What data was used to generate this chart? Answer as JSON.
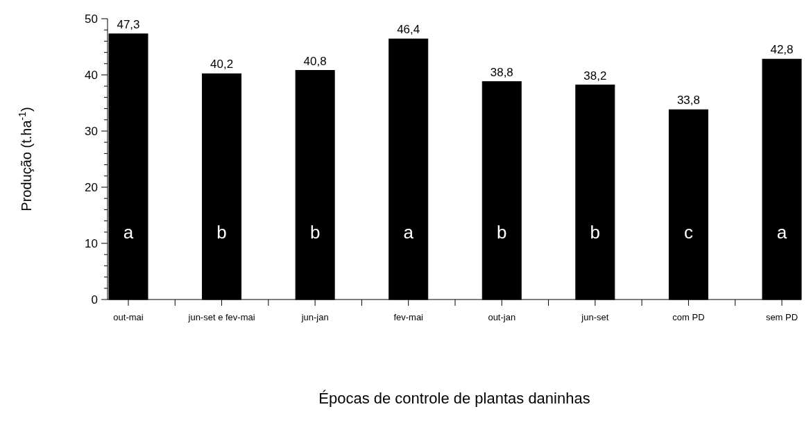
{
  "chart_data": {
    "type": "bar",
    "xlabel": "Épocas de controle de plantas daninhas",
    "ylabel": "Produção (t.ha$^{-1}$)",
    "categories": [
      "out-mai",
      "jun-set e fev-mai",
      "jun-jan",
      "fev-mai",
      "out-jan",
      "jun-set",
      "com PD",
      "sem PD"
    ],
    "values": [
      47.3,
      40.2,
      40.8,
      46.4,
      38.8,
      38.2,
      33.8,
      42.8
    ],
    "value_labels": [
      "47,3",
      "40,2",
      "40,8",
      "46,4",
      "38,8",
      "38,2",
      "33,8",
      "42,8"
    ],
    "color": "#000000",
    "ylim": [
      0,
      50
    ],
    "yticks": [
      0,
      {
        "value": 2,
        "label": null
      },
      {
        "value": 4,
        "label": null
      },
      {
        "value": 6,
        "label": null
      },
      {
        "value": 8,
        "label": null
      },
      10,
      {
        "value": 12,
        "label": null
      },
      {
        "value": 14,
        "label": null
      },
      {
        "value": 16,
        "label": null
      },
      {
        "value": 18,
        "label": null
      },
      20,
      {
        "value": 22,
        "label": null
      },
      {
        "value": 24,
        "label": null
      },
      {
        "value": 26,
        "label": null
      },
      {
        "value": 28,
        "label": null
      },
      30,
      {
        "value": 32,
        "label": null
      },
      {
        "value": 34,
        "label": null
      },
      {
        "value": 36,
        "label": null
      },
      {
        "value": 38,
        "label": null
      },
      40,
      {
        "value": 42,
        "label": null
      },
      {
        "value": 44,
        "label": null
      },
      {
        "value": 46,
        "label": null
      },
      {
        "value": 48,
        "label": null
      },
      50
    ],
    "annotations": [
      "a",
      "b",
      "b",
      "a",
      "b",
      "b",
      "c",
      "a"
    ],
    "grid": false
  }
}
